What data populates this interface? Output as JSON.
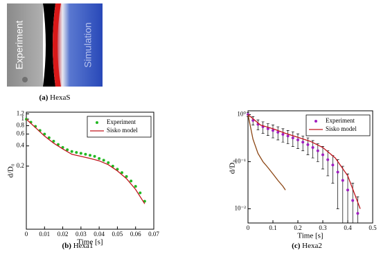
{
  "image_panel": {
    "caption_letter": "(a)",
    "caption": "HexaS",
    "labels": [
      "Experiment",
      "Simulation"
    ]
  },
  "chart_data": [
    {
      "type": "scatter",
      "caption_letter": "(b)",
      "caption": "Hexa1",
      "xlabel": "Time [s]",
      "ylabel": "d/D₀",
      "log_y": true,
      "legend": "upper right",
      "xlim": [
        0,
        0.07
      ],
      "xticks": [
        0,
        0.01,
        0.02,
        0.03,
        0.04,
        0.05,
        0.06,
        0.07
      ],
      "ylim": [
        0.023,
        1.27
      ],
      "yticks": [
        0.2,
        0.4,
        0.6,
        0.8,
        1,
        1.2
      ],
      "series": [
        {
          "name": "Experiment",
          "color": "#22b822",
          "style": "points",
          "x": [
            0,
            0.0025,
            0.005,
            0.0075,
            0.01,
            0.0125,
            0.015,
            0.0175,
            0.02,
            0.0225,
            0.025,
            0.0275,
            0.03,
            0.0325,
            0.035,
            0.0375,
            0.04,
            0.0425,
            0.045,
            0.0475,
            0.05,
            0.0525,
            0.055,
            0.0575,
            0.06,
            0.0625,
            0.065
          ],
          "values": [
            1.0,
            0.9,
            0.78,
            0.68,
            0.6,
            0.53,
            0.47,
            0.42,
            0.38,
            0.35,
            0.33,
            0.32,
            0.31,
            0.3,
            0.29,
            0.28,
            0.26,
            0.245,
            0.225,
            0.2,
            0.18,
            0.16,
            0.14,
            0.12,
            0.1,
            0.08,
            0.06
          ]
        },
        {
          "name": "Sisko model",
          "color": "#c0141c",
          "style": "line",
          "x": [
            0,
            0.005,
            0.01,
            0.015,
            0.02,
            0.025,
            0.03,
            0.035,
            0.04,
            0.045,
            0.05,
            0.055,
            0.06,
            0.065
          ],
          "values": [
            1.0,
            0.75,
            0.56,
            0.44,
            0.36,
            0.3,
            0.28,
            0.26,
            0.24,
            0.21,
            0.17,
            0.13,
            0.09,
            0.055
          ]
        }
      ]
    },
    {
      "type": "scatter",
      "caption_letter": "(c)",
      "caption": "Hexa2",
      "xlabel": "Time [s]",
      "ylabel": "d/D₀",
      "log_y": true,
      "legend": "upper right",
      "xlim": [
        0,
        0.5
      ],
      "xticks": [
        0,
        0.1,
        0.2,
        0.3,
        0.4,
        0.5
      ],
      "ylim": [
        0.005,
        1.2
      ],
      "yticks": [
        {
          "value": 0.01,
          "label": "10⁻²"
        },
        {
          "value": 0.1,
          "label": "10⁻¹"
        },
        {
          "value": 1,
          "label": "10⁰"
        }
      ],
      "series": [
        {
          "name": "Experiment",
          "color": "#a020c0",
          "style": "points",
          "x": [
            0,
            0.02,
            0.04,
            0.06,
            0.08,
            0.1,
            0.12,
            0.14,
            0.16,
            0.18,
            0.2,
            0.22,
            0.24,
            0.26,
            0.28,
            0.3,
            0.32,
            0.34,
            0.36,
            0.38,
            0.4,
            0.42,
            0.44
          ],
          "values": [
            1.0,
            0.75,
            0.62,
            0.55,
            0.5,
            0.46,
            0.42,
            0.38,
            0.35,
            0.32,
            0.29,
            0.26,
            0.23,
            0.2,
            0.17,
            0.14,
            0.11,
            0.085,
            0.06,
            0.04,
            0.025,
            0.015,
            0.008
          ],
          "errors": [
            0.1,
            0.15,
            0.15,
            0.15,
            0.14,
            0.14,
            0.13,
            0.12,
            0.11,
            0.11,
            0.1,
            0.09,
            0.09,
            0.08,
            0.07,
            0.07,
            0.06,
            0.05,
            0.05,
            0.04,
            0.03,
            0.02,
            0.01
          ]
        },
        {
          "name": "Sisko model",
          "color": "#c0141c",
          "style": "line",
          "x": [
            0,
            0.05,
            0.1,
            0.15,
            0.2,
            0.25,
            0.3,
            0.35,
            0.4,
            0.45
          ],
          "values": [
            1.0,
            0.6,
            0.5,
            0.4,
            0.33,
            0.27,
            0.2,
            0.12,
            0.05,
            0.01
          ]
        },
        {
          "color": "#8b4513",
          "style": "line",
          "x": [
            0,
            0.02,
            0.04,
            0.06,
            0.08,
            0.1,
            0.12,
            0.14,
            0.15
          ],
          "values": [
            1.0,
            0.3,
            0.15,
            0.1,
            0.075,
            0.055,
            0.04,
            0.03,
            0.025
          ]
        }
      ]
    }
  ]
}
